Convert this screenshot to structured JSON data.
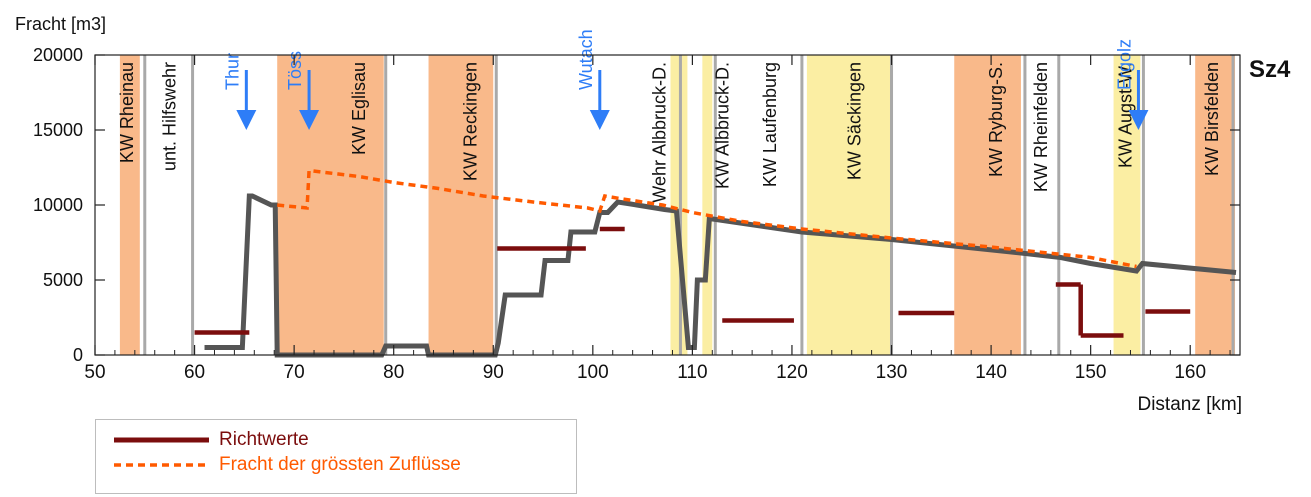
{
  "chart_data": {
    "type": "line",
    "title": "Sz4",
    "ylabel": "Fracht [m3]",
    "xlabel": "Distanz [km]",
    "xlim": [
      50,
      165
    ],
    "ylim": [
      0,
      20000
    ],
    "xticks": [
      50,
      60,
      70,
      80,
      90,
      100,
      110,
      120,
      130,
      140,
      150,
      160
    ],
    "yticks": [
      0,
      5000,
      10000,
      15000,
      20000
    ],
    "grid": false,
    "legend_position": "bottom-left",
    "colors": {
      "orange_band": "#f9b98a",
      "yellow_band": "#fbeea3",
      "dam_line": "#a9a9a9",
      "main_line": "#555555",
      "richtwerte": "#7b0d0d",
      "fracht": "#ff5a00",
      "tributary": "#2e7df7",
      "label": "#111111"
    },
    "bands": [
      {
        "kind": "orange",
        "x0": 52.5,
        "x1": 54.5
      },
      {
        "kind": "orange",
        "x0": 68.3,
        "x1": 79
      },
      {
        "kind": "orange",
        "x0": 83.5,
        "x1": 90
      },
      {
        "kind": "yellow",
        "x0": 107.8,
        "x1": 109.5
      },
      {
        "kind": "yellow",
        "x0": 111,
        "x1": 112
      },
      {
        "kind": "yellow",
        "x0": 121.5,
        "x1": 130
      },
      {
        "kind": "orange",
        "x0": 136.3,
        "x1": 143
      },
      {
        "kind": "yellow",
        "x0": 152.3,
        "x1": 155
      },
      {
        "kind": "orange",
        "x0": 160.5,
        "x1": 164.5
      }
    ],
    "dams": [
      {
        "x": 55,
        "label": "KW Rheinau",
        "label_x": 53.2
      },
      {
        "x": 59.8,
        "label": "unt. Hilfswehr",
        "label_x": 57.5
      },
      {
        "x": 79.2,
        "label": "KW Eglisau",
        "label_x": 76.5
      },
      {
        "x": 90.3,
        "label": "KW Reckingen",
        "label_x": 87.7
      },
      {
        "x": 108.8,
        "label": "Wehr Albbruck-D.",
        "label_x": 106.7
      },
      {
        "x": 112.3,
        "label": "KW Albbruck-D.",
        "label_x": 113
      },
      {
        "x": 121,
        "label": "KW Laufenburg",
        "label_x": 117.8
      },
      {
        "x": 130,
        "label": "KW Säckingen",
        "label_x": 126.3
      },
      {
        "x": 143.4,
        "label": "KW Ryburg-S.",
        "label_x": 140.5
      },
      {
        "x": 146.8,
        "label": "KW Rheinfelden",
        "label_x": 145
      },
      {
        "x": 155.3,
        "label": "KW Augst-W.",
        "label_x": 153.5
      },
      {
        "x": 164.3,
        "label": "KW Birsfelden",
        "label_x": 162.2
      }
    ],
    "tributaries": [
      {
        "name": "Thur",
        "x": 65.2
      },
      {
        "name": "Töss",
        "x": 71.5
      },
      {
        "name": "Wutach",
        "x": 100.7
      },
      {
        "name": "Ergolz",
        "x": 154.8
      }
    ],
    "series": [
      {
        "name": "Fracht",
        "style": "solid",
        "x": [
          61,
          64.8,
          65.5,
          65.8,
          67.7,
          68.1,
          68.3,
          78.8,
          79.2,
          83.3,
          83.5,
          90.2,
          90.5,
          91.2,
          91.6,
          94.8,
          95.2,
          97.5,
          97.8,
          100.2,
          100.7,
          101.5,
          102.5,
          103.5,
          107.2,
          108.4,
          109.6,
          110.2,
          110.5,
          111.3,
          111.7,
          121,
          130,
          143,
          147,
          150,
          154.6,
          155.2,
          164.6
        ],
        "y": [
          500,
          500,
          10600,
          10600,
          10000,
          10000,
          0,
          0,
          600,
          600,
          0,
          0,
          800,
          4000,
          4000,
          4000,
          6300,
          6300,
          8200,
          8200,
          9500,
          9500,
          10200,
          10100,
          9700,
          9600,
          500,
          500,
          5000,
          5000,
          9100,
          8200,
          7700,
          6800,
          6500,
          6100,
          5600,
          6100,
          5500
        ]
      },
      {
        "name": "Fracht der grössten Zuflüsse",
        "style": "dashed",
        "x": [
          68.3,
          71.3,
          71.5,
          76.5,
          80,
          84.5,
          89,
          94,
          99.5,
          100.7,
          101.2,
          103,
          107,
          110,
          115,
          121,
          130,
          140,
          150,
          154.6
        ],
        "y": [
          10000,
          9800,
          12300,
          11900,
          11500,
          11100,
          10600,
          10200,
          9800,
          9600,
          10600,
          10400,
          10000,
          9500,
          8900,
          8400,
          7800,
          7200,
          6500,
          5900
        ]
      },
      {
        "name": "Richtwerte",
        "style": "segments",
        "segments": [
          {
            "x0": 60,
            "x1": 65.5,
            "y": 1500
          },
          {
            "x0": 90.4,
            "x1": 99.3,
            "y": 7100
          },
          {
            "x0": 100.7,
            "x1": 103.2,
            "y": 8400
          },
          {
            "x0": 113,
            "x1": 120.2,
            "y": 2300
          },
          {
            "x0": 130.7,
            "x1": 136.3,
            "y": 2800
          },
          {
            "x0": 146.5,
            "x1": 149,
            "y": 4700
          },
          {
            "x0": 149,
            "x1": 153.3,
            "y": 1300
          },
          {
            "x0": 155.5,
            "x1": 160,
            "y": 2900
          }
        ],
        "connectors": [
          {
            "x": 149,
            "y0": 4700,
            "y1": 1300
          }
        ]
      }
    ],
    "legend": [
      {
        "label": "Richtwerte",
        "color": "#7b0d0d",
        "style": "solid"
      },
      {
        "label": "Fracht der grössten Zuflüsse",
        "color": "#ff5a00",
        "style": "dashed"
      }
    ]
  }
}
